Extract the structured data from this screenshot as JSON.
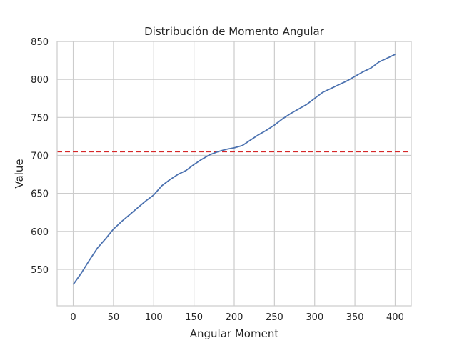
{
  "chart_data": {
    "type": "line",
    "title": "Distribución de Momento Angular",
    "xlabel": "Angular Moment",
    "ylabel": "Value",
    "xlim": [
      -20,
      420
    ],
    "ylim": [
      502,
      850
    ],
    "xticks": [
      0,
      50,
      100,
      150,
      200,
      250,
      300,
      350,
      400
    ],
    "yticks": [
      550,
      600,
      650,
      700,
      750,
      800,
      850
    ],
    "grid": true,
    "reference_line": {
      "y": 705,
      "color": "#d62728",
      "style": "dashed"
    },
    "series": [
      {
        "color": "#4c72b0",
        "x": [
          0,
          10,
          20,
          30,
          40,
          50,
          60,
          70,
          80,
          90,
          100,
          110,
          120,
          130,
          140,
          150,
          160,
          170,
          180,
          190,
          200,
          210,
          220,
          230,
          240,
          250,
          260,
          270,
          280,
          290,
          300,
          310,
          320,
          330,
          340,
          350,
          360,
          370,
          380,
          390,
          400
        ],
        "y": [
          530,
          545,
          562,
          578,
          590,
          603,
          613,
          622,
          631,
          640,
          648,
          660,
          668,
          675,
          680,
          688,
          695,
          701,
          705,
          708,
          710,
          713,
          720,
          727,
          733,
          740,
          748,
          755,
          761,
          767,
          775,
          783,
          788,
          793,
          798,
          804,
          810,
          815,
          823,
          828,
          833
        ]
      }
    ]
  }
}
